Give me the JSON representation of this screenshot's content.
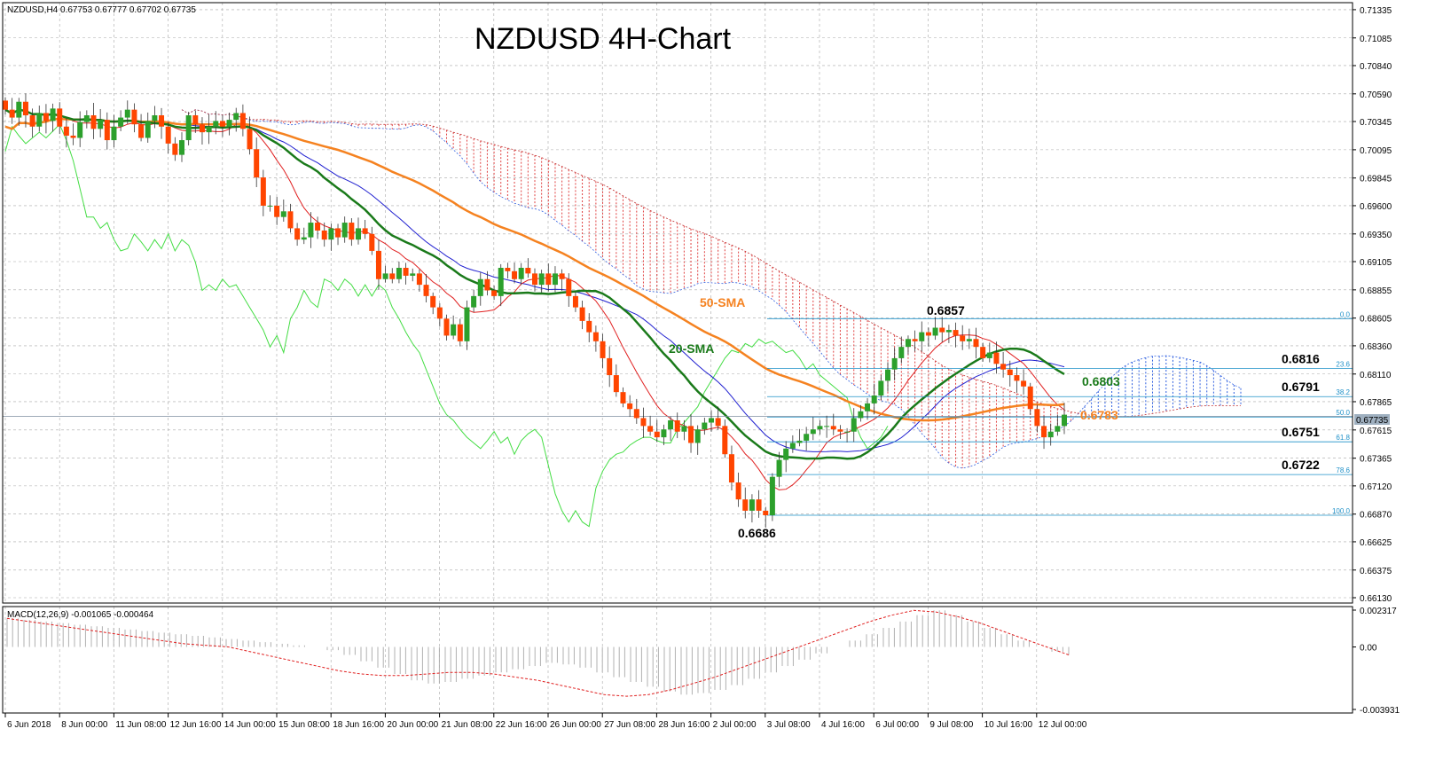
{
  "chart_data": {
    "type": "candlestick",
    "header": "NZDUSD,H4  0.67753 0.67777 0.67702 0.67735",
    "title": "NZDUSD 4H-Chart",
    "y_ticks": [
      "0.71335",
      "0.71085",
      "0.70840",
      "0.70590",
      "0.70345",
      "0.70095",
      "0.69845",
      "0.69600",
      "0.69350",
      "0.69105",
      "0.68855",
      "0.68605",
      "0.68360",
      "0.68110",
      "0.67865",
      "0.67615",
      "0.67365",
      "0.67120",
      "0.66870",
      "0.66625",
      "0.66375",
      "0.66130"
    ],
    "ylim": [
      0.6613,
      0.7135
    ],
    "current_price": "0.67735",
    "x_ticks": [
      "6 Jun 2018",
      "8 Jun 00:00",
      "11 Jun 08:00",
      "12 Jun 16:00",
      "14 Jun 00:00",
      "15 Jun 08:00",
      "18 Jun 16:00",
      "20 Jun 00:00",
      "21 Jun 08:00",
      "22 Jun 16:00",
      "26 Jun 00:00",
      "27 Jun 08:00",
      "28 Jun 16:00",
      "2 Jul 00:00",
      "3 Jul 08:00",
      "4 Jul 16:00",
      "6 Jul 00:00",
      "9 Jul 08:00",
      "10 Jul 16:00",
      "12 Jul 00:00"
    ],
    "candles_close": [
      0.7045,
      0.7038,
      0.7052,
      0.704,
      0.703,
      0.7042,
      0.7035,
      0.7046,
      0.703,
      0.7022,
      0.702,
      0.7034,
      0.704,
      0.7028,
      0.7036,
      0.7018,
      0.703,
      0.7038,
      0.7045,
      0.7032,
      0.702,
      0.7035,
      0.704,
      0.703,
      0.7015,
      0.7005,
      0.7018,
      0.704,
      0.7032,
      0.7025,
      0.703,
      0.7035,
      0.703,
      0.7036,
      0.7042,
      0.7028,
      0.701,
      0.6985,
      0.696,
      0.696,
      0.695,
      0.6955,
      0.694,
      0.693,
      0.6932,
      0.6945,
      0.6938,
      0.693,
      0.694,
      0.6932,
      0.6945,
      0.693,
      0.694,
      0.6935,
      0.692,
      0.6895,
      0.69,
      0.6895,
      0.6905,
      0.6898,
      0.69,
      0.689,
      0.688,
      0.687,
      0.686,
      0.6845,
      0.6855,
      0.684,
      0.687,
      0.688,
      0.6895,
      0.6885,
      0.688,
      0.6905,
      0.6902,
      0.6895,
      0.6905,
      0.69,
      0.689,
      0.69,
      0.689,
      0.69,
      0.6895,
      0.688,
      0.687,
      0.6858,
      0.6848,
      0.684,
      0.6825,
      0.681,
      0.6795,
      0.6785,
      0.678,
      0.6772,
      0.6765,
      0.676,
      0.6755,
      0.6762,
      0.677,
      0.676,
      0.6765,
      0.675,
      0.6762,
      0.6768,
      0.6772,
      0.6765,
      0.674,
      0.6715,
      0.67,
      0.669,
      0.67,
      0.669,
      0.6686,
      0.672,
      0.6735,
      0.6745,
      0.675,
      0.6752,
      0.6758,
      0.6762,
      0.6765,
      0.6765,
      0.6762,
      0.676,
      0.676,
      0.6772,
      0.6778,
      0.6785,
      0.6792,
      0.6805,
      0.6815,
      0.6825,
      0.6835,
      0.6842,
      0.684,
      0.6848,
      0.6845,
      0.6852,
      0.6848,
      0.685,
      0.6845,
      0.684,
      0.6842,
      0.6835,
      0.6825,
      0.683,
      0.682,
      0.6815,
      0.681,
      0.6805,
      0.68,
      0.678,
      0.6765,
      0.6755,
      0.676,
      0.6765,
      0.6775
    ],
    "series": [
      {
        "name": "20-SMA",
        "color": "#1a7a1a",
        "label_value": "0.6803"
      },
      {
        "name": "50-SMA",
        "color": "#f58220",
        "label_value": "0.6783"
      }
    ],
    "annotations": {
      "high_label": "0.6857",
      "low_label": "0.6686",
      "sma20_label": "20-SMA",
      "sma50_label": "50-SMA"
    },
    "fibonacci": [
      {
        "pct": "0.0",
        "price": 0.686,
        "label": ""
      },
      {
        "pct": "23.6",
        "price": 0.6816,
        "label": "0.6816"
      },
      {
        "pct": "38.2",
        "price": 0.6791,
        "label": "0.6791"
      },
      {
        "pct": "50.0",
        "price": 0.6773,
        "label": ""
      },
      {
        "pct": "61.8",
        "price": 0.6751,
        "label": "0.6751"
      },
      {
        "pct": "78.6",
        "price": 0.6722,
        "label": "0.6722"
      },
      {
        "pct": "100.0",
        "price": 0.6686,
        "label": ""
      }
    ],
    "macd": {
      "header": "MACD(12,26,9) -0.001065 -0.000464",
      "y_ticks": [
        "0.002317",
        "0.00",
        "-0.003931"
      ],
      "ylim": [
        -0.003931,
        0.002317
      ],
      "histogram": [
        0.0018,
        0.0017,
        0.0016,
        0.0015,
        0.0014,
        0.0013,
        0.0012,
        0.0011,
        0.001,
        0.0009,
        0.0008,
        0.0007,
        0.0006,
        0.0005,
        0.0004,
        0.0003,
        0.0002,
        0.0001,
        0.0,
        -0.0002,
        -0.0005,
        -0.0009,
        -0.0013,
        -0.0017,
        -0.0021,
        -0.0023,
        -0.0022,
        -0.002,
        -0.0018,
        -0.0016,
        -0.0014,
        -0.0012,
        -0.001,
        -0.0011,
        -0.0013,
        -0.0016,
        -0.0019,
        -0.0022,
        -0.0025,
        -0.0028,
        -0.003,
        -0.0029,
        -0.0027,
        -0.0024,
        -0.002,
        -0.0016,
        -0.0012,
        -0.0008,
        -0.0004,
        0.0,
        0.0004,
        0.0008,
        0.0012,
        0.0016,
        0.002,
        0.0023,
        0.002,
        0.0016,
        0.0012,
        0.0008,
        0.0004,
        0.0,
        -0.0003,
        -0.0005
      ],
      "signal": [
        0.0018,
        0.0016,
        0.0014,
        0.0012,
        0.001,
        0.0008,
        0.0006,
        0.0004,
        0.0002,
        0.0001,
        0.0,
        -0.0003,
        -0.0006,
        -0.0009,
        -0.0012,
        -0.0015,
        -0.0017,
        -0.0018,
        -0.0018,
        -0.0017,
        -0.0016,
        -0.0016,
        -0.0017,
        -0.0019,
        -0.0021,
        -0.0024,
        -0.0027,
        -0.003,
        -0.0031,
        -0.003,
        -0.0027,
        -0.0023,
        -0.0019,
        -0.0014,
        -0.0009,
        -0.0004,
        0.0001,
        0.0006,
        0.0011,
        0.0016,
        0.002,
        0.0023,
        0.0022,
        0.0019,
        0.0015,
        0.001,
        0.0005,
        0.0,
        -0.0005
      ]
    }
  }
}
